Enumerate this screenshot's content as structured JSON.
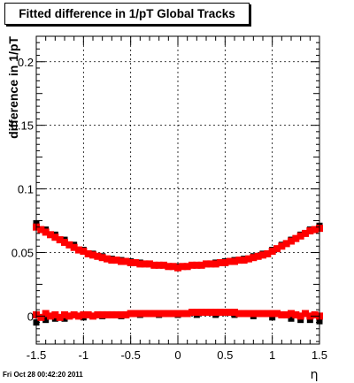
{
  "title": "Fitted difference in 1/pT  Global Tracks",
  "timestamp": "Fri Oct 28 00:42:20 2011",
  "chart_data": {
    "type": "scatter",
    "title": "Fitted difference in 1/pT  Global Tracks",
    "xlabel": "η",
    "ylabel": "difference in 1/pT",
    "xlim": [
      -1.5,
      1.5
    ],
    "ylim": [
      -0.022,
      0.22
    ],
    "x_ticks": [
      -1.5,
      -1,
      -0.5,
      0,
      0.5,
      1,
      1.5
    ],
    "x_tick_labels": [
      "-1.5",
      "-1",
      "-0.5",
      "0",
      "0.5",
      "1",
      "1.5"
    ],
    "y_ticks": [
      0,
      0.05,
      0.1,
      0.15,
      0.2
    ],
    "y_tick_labels": [
      "0",
      "0.05",
      "0.1",
      "0.15",
      "0.2"
    ],
    "grid": true,
    "series": [
      {
        "color": "#000000",
        "points": [
          [
            -1.5,
            0.073
          ],
          [
            -1.4,
            0.068
          ],
          [
            -1.3,
            0.064
          ],
          [
            -1.2,
            0.06
          ],
          [
            -1.1,
            0.056
          ],
          [
            -1.0,
            0.052
          ],
          [
            -0.9,
            0.049
          ],
          [
            -0.8,
            0.047
          ],
          [
            -0.7,
            0.045
          ],
          [
            -0.6,
            0.044
          ],
          [
            -0.5,
            0.043
          ],
          [
            -0.4,
            0.042
          ],
          [
            -0.3,
            0.041
          ],
          [
            -0.2,
            0.04
          ],
          [
            -0.1,
            0.039
          ],
          [
            0.0,
            0.039
          ],
          [
            0.1,
            0.039
          ],
          [
            0.2,
            0.04
          ],
          [
            0.3,
            0.041
          ],
          [
            0.4,
            0.042
          ],
          [
            0.5,
            0.043
          ],
          [
            0.6,
            0.044
          ],
          [
            0.7,
            0.045
          ],
          [
            0.8,
            0.047
          ],
          [
            0.9,
            0.049
          ],
          [
            1.0,
            0.052
          ],
          [
            1.1,
            0.056
          ],
          [
            1.2,
            0.06
          ],
          [
            1.3,
            0.064
          ],
          [
            1.4,
            0.068
          ],
          [
            1.5,
            0.071
          ],
          [
            -1.5,
            -0.005
          ],
          [
            -1.4,
            -0.003
          ],
          [
            -1.3,
            -0.002
          ],
          [
            -1.2,
            -0.002
          ],
          [
            -1.0,
            -0.001
          ],
          [
            -0.8,
            0.0
          ],
          [
            -0.6,
            0.0
          ],
          [
            -0.4,
            0.001
          ],
          [
            -0.2,
            0.001
          ],
          [
            0.0,
            0.001
          ],
          [
            0.2,
            0.001
          ],
          [
            0.4,
            0.001
          ],
          [
            0.6,
            0.001
          ],
          [
            0.8,
            0.0
          ],
          [
            1.0,
            -0.001
          ],
          [
            1.2,
            -0.002
          ],
          [
            1.3,
            -0.003
          ],
          [
            1.4,
            -0.003
          ],
          [
            1.5,
            -0.004
          ]
        ]
      },
      {
        "color": "#ff0000",
        "points": [
          [
            -1.5,
            0.07
          ],
          [
            -1.45,
            0.068
          ],
          [
            -1.4,
            0.066
          ],
          [
            -1.35,
            0.064
          ],
          [
            -1.3,
            0.062
          ],
          [
            -1.25,
            0.06
          ],
          [
            -1.2,
            0.058
          ],
          [
            -1.15,
            0.056
          ],
          [
            -1.1,
            0.054
          ],
          [
            -1.05,
            0.052
          ],
          [
            -1.0,
            0.051
          ],
          [
            -0.95,
            0.049
          ],
          [
            -0.9,
            0.048
          ],
          [
            -0.85,
            0.047
          ],
          [
            -0.8,
            0.046
          ],
          [
            -0.75,
            0.045
          ],
          [
            -0.7,
            0.044
          ],
          [
            -0.65,
            0.044
          ],
          [
            -0.6,
            0.043
          ],
          [
            -0.55,
            0.043
          ],
          [
            -0.5,
            0.042
          ],
          [
            -0.45,
            0.042
          ],
          [
            -0.4,
            0.041
          ],
          [
            -0.35,
            0.041
          ],
          [
            -0.3,
            0.041
          ],
          [
            -0.25,
            0.04
          ],
          [
            -0.2,
            0.04
          ],
          [
            -0.15,
            0.04
          ],
          [
            -0.1,
            0.039
          ],
          [
            -0.05,
            0.039
          ],
          [
            0.0,
            0.038
          ],
          [
            0.05,
            0.039
          ],
          [
            0.1,
            0.039
          ],
          [
            0.15,
            0.04
          ],
          [
            0.2,
            0.04
          ],
          [
            0.25,
            0.04
          ],
          [
            0.3,
            0.041
          ],
          [
            0.35,
            0.041
          ],
          [
            0.4,
            0.041
          ],
          [
            0.45,
            0.042
          ],
          [
            0.5,
            0.042
          ],
          [
            0.55,
            0.043
          ],
          [
            0.6,
            0.043
          ],
          [
            0.65,
            0.044
          ],
          [
            0.7,
            0.044
          ],
          [
            0.75,
            0.045
          ],
          [
            0.8,
            0.046
          ],
          [
            0.85,
            0.047
          ],
          [
            0.9,
            0.048
          ],
          [
            0.95,
            0.049
          ],
          [
            1.0,
            0.051
          ],
          [
            1.05,
            0.053
          ],
          [
            1.1,
            0.055
          ],
          [
            1.15,
            0.057
          ],
          [
            1.2,
            0.059
          ],
          [
            1.25,
            0.061
          ],
          [
            1.3,
            0.063
          ],
          [
            1.35,
            0.065
          ],
          [
            1.4,
            0.067
          ],
          [
            1.45,
            0.068
          ],
          [
            1.5,
            0.069
          ],
          [
            -1.5,
            0.001
          ],
          [
            -1.45,
            -0.001
          ],
          [
            -1.4,
            0.002
          ],
          [
            -1.35,
            0.0
          ],
          [
            -1.3,
            0.001
          ],
          [
            -1.25,
            -0.001
          ],
          [
            -1.2,
            0.001
          ],
          [
            -1.15,
            0.0
          ],
          [
            -1.1,
            0.001
          ],
          [
            -1.05,
            0.0
          ],
          [
            -1.0,
            0.001
          ],
          [
            -0.95,
            0.001
          ],
          [
            -0.9,
            0.0
          ],
          [
            -0.85,
            0.001
          ],
          [
            -0.8,
            0.001
          ],
          [
            -0.75,
            0.001
          ],
          [
            -0.7,
            0.001
          ],
          [
            -0.65,
            0.001
          ],
          [
            -0.6,
            0.001
          ],
          [
            -0.55,
            0.001
          ],
          [
            -0.5,
            0.002
          ],
          [
            -0.45,
            0.002
          ],
          [
            -0.4,
            0.002
          ],
          [
            -0.35,
            0.002
          ],
          [
            -0.3,
            0.002
          ],
          [
            -0.25,
            0.002
          ],
          [
            -0.2,
            0.002
          ],
          [
            -0.15,
            0.002
          ],
          [
            -0.1,
            0.002
          ],
          [
            -0.05,
            0.002
          ],
          [
            0.0,
            0.002
          ],
          [
            0.05,
            0.002
          ],
          [
            0.1,
            0.002
          ],
          [
            0.15,
            0.003
          ],
          [
            0.2,
            0.003
          ],
          [
            0.25,
            0.003
          ],
          [
            0.3,
            0.003
          ],
          [
            0.35,
            0.003
          ],
          [
            0.4,
            0.003
          ],
          [
            0.45,
            0.003
          ],
          [
            0.5,
            0.003
          ],
          [
            0.55,
            0.003
          ],
          [
            0.6,
            0.003
          ],
          [
            0.65,
            0.002
          ],
          [
            0.7,
            0.002
          ],
          [
            0.75,
            0.002
          ],
          [
            0.8,
            0.002
          ],
          [
            0.85,
            0.002
          ],
          [
            0.9,
            0.002
          ],
          [
            0.95,
            0.002
          ],
          [
            1.0,
            0.002
          ],
          [
            1.05,
            0.002
          ],
          [
            1.1,
            0.001
          ],
          [
            1.15,
            0.001
          ],
          [
            1.2,
            0.002
          ],
          [
            1.25,
            0.001
          ],
          [
            1.3,
            0.0
          ],
          [
            1.35,
            0.002
          ],
          [
            1.4,
            0.0
          ],
          [
            1.45,
            0.001
          ],
          [
            1.5,
            0.0
          ]
        ]
      }
    ]
  }
}
